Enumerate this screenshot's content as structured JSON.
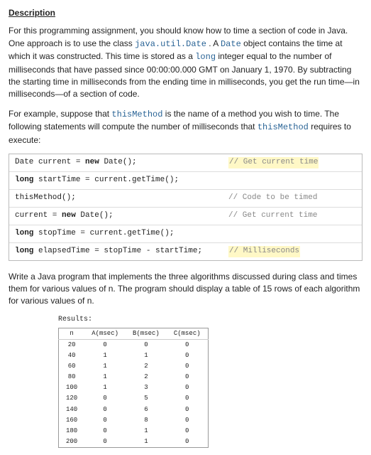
{
  "heading": "Description",
  "para1_parts": {
    "a": "For this programming assignment, you should know how to time a section of code in Java. One approach is to use the class ",
    "b": "java.util.Date",
    "c": ". A ",
    "d": "Date",
    "e": " object contains the time at which it was constructed. This time is stored as a ",
    "f": "long",
    "g": " integer equal to the number of milliseconds that have passed since 00:00:00.000 GMT on January 1, 1970. By subtracting the starting time in milliseconds from the ending time in milliseconds, you get the run time—in milliseconds—of a section of code."
  },
  "para2_parts": {
    "a": "For example, suppose that ",
    "b": "thisMethod",
    "c": " is the name of a method you wish to time. The following statements will compute the number of milliseconds that ",
    "d": "thisMethod",
    "e": " requires to execute:"
  },
  "codelines": [
    {
      "html": "Date current = <b>new</b> Date();",
      "comment": "// Get current time",
      "hl": true
    },
    {
      "html": "<b>long</b> startTime = current.getTime();",
      "comment": ""
    },
    {
      "html": "thisMethod();",
      "comment": "// Code to be timed"
    },
    {
      "html": "current = <b>new</b> Date();",
      "comment": "// Get current time"
    },
    {
      "html": "<b>long</b> stopTime = current.getTime();",
      "comment": ""
    },
    {
      "html": "<b>long</b> elapsedTime = stopTime - startTime;",
      "comment": "// Milliseconds",
      "hl": true
    }
  ],
  "para3": "Write a Java program that implements the three algorithms discussed during class and times them for various values of n. The program should display a table of 15 rows of each algorithm for various values of n.",
  "results_label": "Results:",
  "table": {
    "columns": [
      "n",
      "A(msec)",
      "B(msec)",
      "C(msec)"
    ],
    "rows": [
      [
        "20",
        "0",
        "0",
        "0"
      ],
      [
        "40",
        "1",
        "1",
        "0"
      ],
      [
        "60",
        "1",
        "2",
        "0"
      ],
      [
        "80",
        "1",
        "2",
        "0"
      ],
      [
        "100",
        "1",
        "3",
        "0"
      ],
      [
        "120",
        "0",
        "5",
        "0"
      ],
      [
        "140",
        "0",
        "6",
        "0"
      ],
      [
        "160",
        "0",
        "8",
        "0"
      ],
      [
        "180",
        "0",
        "1",
        "0"
      ],
      [
        "200",
        "0",
        "1",
        "0"
      ]
    ]
  }
}
